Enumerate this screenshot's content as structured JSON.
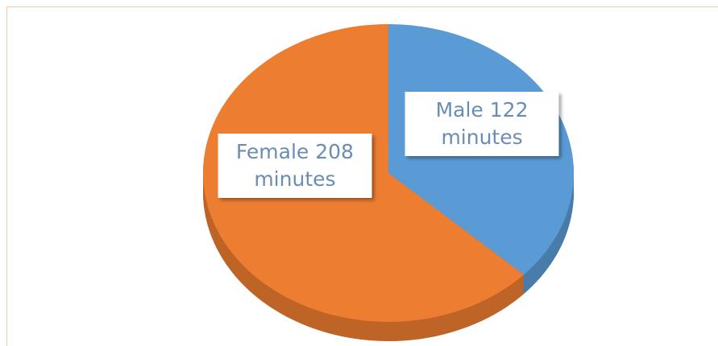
{
  "chart_data": {
    "type": "pie3d",
    "categories": [
      "Male",
      "Female"
    ],
    "values": [
      122,
      208
    ],
    "value_labels": [
      "122 minutes",
      "208 minutes"
    ],
    "colors": [
      "#5b9bd5",
      "#ed7d31"
    ]
  }
}
